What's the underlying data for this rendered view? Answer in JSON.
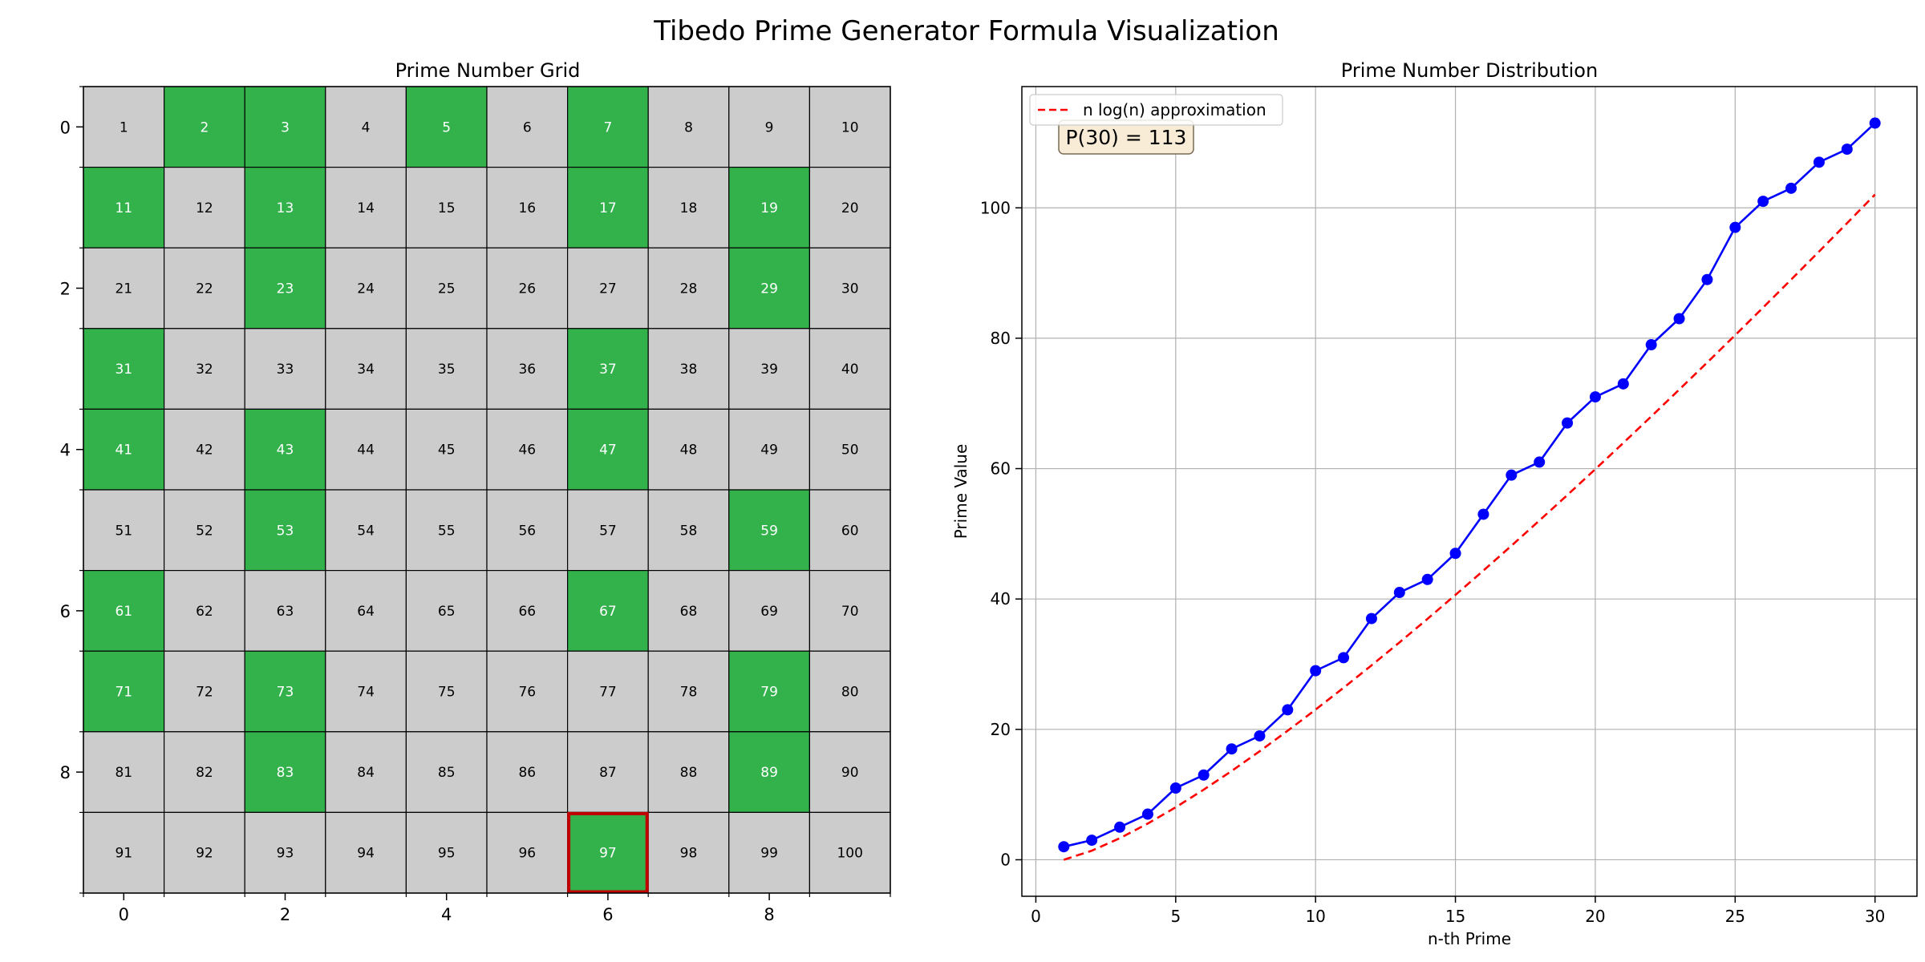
{
  "figure": {
    "title": "Tibedo Prime Generator Formula Visualization"
  },
  "chart_data": [
    {
      "type": "heatmap",
      "title": "Prime Number Grid",
      "rows": 10,
      "cols": 10,
      "cell_values": [
        1,
        2,
        3,
        4,
        5,
        6,
        7,
        8,
        9,
        10,
        11,
        12,
        13,
        14,
        15,
        16,
        17,
        18,
        19,
        20,
        21,
        22,
        23,
        24,
        25,
        26,
        27,
        28,
        29,
        30,
        31,
        32,
        33,
        34,
        35,
        36,
        37,
        38,
        39,
        40,
        41,
        42,
        43,
        44,
        45,
        46,
        47,
        48,
        49,
        50,
        51,
        52,
        53,
        54,
        55,
        56,
        57,
        58,
        59,
        60,
        61,
        62,
        63,
        64,
        65,
        66,
        67,
        68,
        69,
        70,
        71,
        72,
        73,
        74,
        75,
        76,
        77,
        78,
        79,
        80,
        81,
        82,
        83,
        84,
        85,
        86,
        87,
        88,
        89,
        90,
        91,
        92,
        93,
        94,
        95,
        96,
        97,
        98,
        99,
        100
      ],
      "highlighted_primes": [
        2,
        3,
        5,
        7,
        11,
        13,
        17,
        19,
        23,
        29,
        31,
        37,
        41,
        43,
        47,
        53,
        59,
        61,
        67,
        71,
        73,
        79,
        83,
        89,
        97
      ],
      "outlined_cell": 97,
      "x_ticks": [
        0,
        2,
        4,
        6,
        8
      ],
      "y_ticks": [
        0,
        2,
        4,
        6,
        8
      ],
      "colors": {
        "prime": "#33b24c",
        "composite": "#cccccc",
        "outline": "#c00000"
      }
    },
    {
      "type": "line",
      "title": "Prime Number Distribution",
      "xlabel": "n-th Prime",
      "ylabel": "Prime Value",
      "xlim": [
        -0.5,
        31.5
      ],
      "ylim": [
        -5.6,
        118.6
      ],
      "x_ticks": [
        0,
        5,
        10,
        15,
        20,
        25,
        30
      ],
      "y_ticks": [
        0,
        20,
        40,
        60,
        80,
        100
      ],
      "grid": true,
      "legend_position": "upper-left",
      "series": [
        {
          "style": "solid-with-markers",
          "color": "#0000ff",
          "x": [
            1,
            2,
            3,
            4,
            5,
            6,
            7,
            8,
            9,
            10,
            11,
            12,
            13,
            14,
            15,
            16,
            17,
            18,
            19,
            20,
            21,
            22,
            23,
            24,
            25,
            26,
            27,
            28,
            29,
            30
          ],
          "y": [
            2,
            3,
            5,
            7,
            11,
            13,
            17,
            19,
            23,
            29,
            31,
            37,
            41,
            43,
            47,
            53,
            59,
            61,
            67,
            71,
            73,
            79,
            83,
            89,
            97,
            101,
            103,
            107,
            109,
            113
          ]
        },
        {
          "name": "n log(n) approximation",
          "style": "dashed",
          "color": "#ff0000",
          "x": [
            1,
            2,
            3,
            4,
            5,
            6,
            7,
            8,
            9,
            10,
            11,
            12,
            13,
            14,
            15,
            16,
            17,
            18,
            19,
            20,
            21,
            22,
            23,
            24,
            25,
            26,
            27,
            28,
            29,
            30
          ],
          "y": [
            0,
            1.39,
            3.3,
            5.55,
            8.05,
            10.75,
            13.62,
            16.64,
            19.78,
            23.03,
            26.38,
            29.82,
            33.34,
            36.95,
            40.62,
            44.36,
            48.16,
            52.03,
            55.94,
            59.91,
            63.93,
            68.0,
            72.12,
            76.27,
            80.47,
            84.71,
            88.99,
            93.3,
            97.65,
            102.04
          ]
        }
      ],
      "annotation": "P(30) = 113"
    }
  ]
}
